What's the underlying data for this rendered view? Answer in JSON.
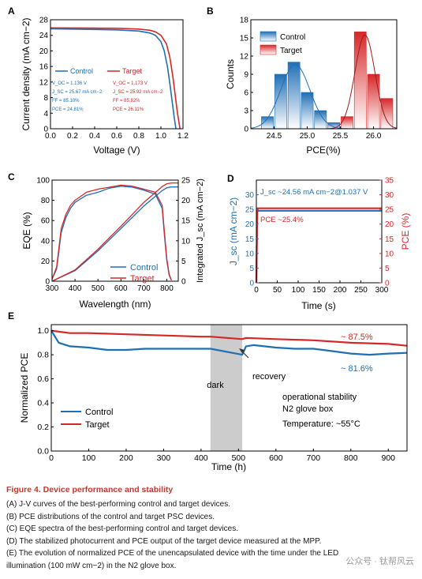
{
  "figure_title": "Figure 4.  Device performance and stability",
  "caption_lines": [
    "(A) J-V curves of the best-performing control and target devices.",
    "(B) PCE distributions of the control and target PSC devices.",
    "(C) EQE spectra of the best-performing control and target devices.",
    "(D) The stabilized photocurrent and PCE output of the target device measured at the MPP.",
    "(E) The evolution of normalized PCE of the unencapsulated device with the time under the LED",
    "illumination (100 mW cm−2) in the N2 glove box."
  ],
  "watermark": "公众号 · 钛帮风云",
  "colors": {
    "control": "#1f6fb5",
    "target": "#d62728",
    "dark_band": "#cccccc",
    "caption_title": "#c0392b"
  },
  "chart_data": [
    {
      "panel": "A",
      "type": "line",
      "xlabel": "Voltage (V)",
      "ylabel": "Current density (mA cm−2)",
      "xlim": [
        0.0,
        1.2
      ],
      "ylim": [
        0,
        28
      ],
      "xticks": [
        "0.0",
        "0.2",
        "0.4",
        "0.6",
        "0.8",
        "1.0",
        "1.2"
      ],
      "yticks": [
        "0",
        "4",
        "8",
        "12",
        "16",
        "20",
        "24",
        "28"
      ],
      "legend": [
        "Control",
        "Target"
      ],
      "series": [
        {
          "name": "Control",
          "x": [
            0.0,
            0.2,
            0.4,
            0.6,
            0.8,
            0.9,
            0.95,
            1.0,
            1.03,
            1.06,
            1.08,
            1.1,
            1.12,
            1.136
          ],
          "y": [
            25.67,
            25.6,
            25.5,
            25.4,
            25.1,
            24.6,
            24.0,
            22.4,
            20.0,
            15.8,
            11.8,
            7.4,
            3.0,
            0.0
          ]
        },
        {
          "name": "Target",
          "x": [
            0.0,
            0.2,
            0.4,
            0.6,
            0.8,
            0.9,
            0.95,
            1.0,
            1.05,
            1.08,
            1.11,
            1.13,
            1.15,
            1.173
          ],
          "y": [
            25.92,
            25.9,
            25.85,
            25.8,
            25.6,
            25.3,
            24.9,
            24.0,
            21.8,
            18.5,
            13.0,
            8.5,
            4.0,
            0.0
          ]
        }
      ],
      "annotations": {
        "control": [
          "V_OC = 1.136 V",
          "J_SC = 25.67 mA cm−2",
          "FF = 85.10%",
          "PCE = 24.81%"
        ],
        "target": [
          "V_OC = 1.173 V",
          "J_SC = 25.92 mA cm−2",
          "FF = 85.82%",
          "PCE = 26.11%"
        ]
      }
    },
    {
      "panel": "B",
      "type": "bar",
      "xlabel": "PCE(%)",
      "ylabel": "Counts",
      "xlim": [
        24.15,
        26.35
      ],
      "ylim": [
        0,
        18
      ],
      "xticks": [
        "24.5",
        "25.0",
        "25.5",
        "26.0"
      ],
      "yticks": [
        "0",
        "3",
        "6",
        "9",
        "12",
        "15",
        "18"
      ],
      "legend": [
        "Control",
        "Target"
      ],
      "bin_width": 0.18,
      "series": [
        {
          "name": "Control",
          "x": [
            24.4,
            24.6,
            24.8,
            25.0,
            25.2,
            25.4,
            25.6
          ],
          "values": [
            2,
            9,
            11,
            6,
            3,
            1,
            0
          ]
        },
        {
          "name": "Target",
          "x": [
            25.6,
            25.8,
            26.0,
            26.2
          ],
          "values": [
            2,
            16,
            9,
            5
          ]
        }
      ],
      "fits": [
        {
          "name": "Control",
          "mean": 24.82,
          "sigma": 0.22,
          "peak": 10.6
        },
        {
          "name": "Target",
          "mean": 25.87,
          "sigma": 0.15,
          "peak": 15.5
        }
      ]
    },
    {
      "panel": "C",
      "type": "line",
      "xlabel": "Wavelength (nm)",
      "ylabel": "EQE (%)",
      "y2label": "Integrated J_sc (mA cm−2)",
      "xlim": [
        300,
        850
      ],
      "ylim": [
        0,
        100
      ],
      "y2lim": [
        0,
        25
      ],
      "xticks": [
        "300",
        "400",
        "500",
        "600",
        "700",
        "800"
      ],
      "yticks": [
        "0",
        "20",
        "40",
        "60",
        "80",
        "100"
      ],
      "y2ticks": [
        "0",
        "5",
        "10",
        "15",
        "20",
        "25"
      ],
      "legend": [
        "Control",
        "Target"
      ],
      "series": [
        {
          "name": "Control EQE",
          "x": [
            300,
            320,
            340,
            360,
            380,
            400,
            450,
            500,
            550,
            600,
            650,
            700,
            750,
            780,
            790,
            800,
            810,
            820
          ],
          "y": [
            2,
            12,
            48,
            63,
            72,
            78,
            85,
            88,
            92,
            94,
            93,
            90,
            86,
            72,
            45,
            20,
            6,
            1
          ]
        },
        {
          "name": "Target EQE",
          "x": [
            300,
            320,
            340,
            360,
            380,
            400,
            450,
            500,
            550,
            600,
            650,
            700,
            750,
            780,
            790,
            800,
            810,
            820
          ],
          "y": [
            2,
            14,
            52,
            66,
            75,
            80,
            88,
            91,
            93,
            95,
            94,
            91,
            88,
            75,
            48,
            22,
            7,
            1
          ]
        },
        {
          "name": "Control J_sc",
          "x": [
            300,
            400,
            500,
            600,
            700,
            780,
            800,
            820,
            850
          ],
          "y": [
            0,
            2.6,
            7.5,
            13.0,
            18.6,
            22.4,
            23.1,
            23.3,
            23.3
          ]
        },
        {
          "name": "Target J_sc",
          "x": [
            300,
            400,
            500,
            600,
            700,
            780,
            800,
            820,
            850
          ],
          "y": [
            0,
            2.8,
            7.9,
            13.6,
            19.5,
            23.4,
            24.1,
            24.3,
            24.3
          ]
        }
      ]
    },
    {
      "panel": "D",
      "type": "line",
      "xlabel": "Time (s)",
      "ylabel": "J_sc (mA cm−2)",
      "y2label": "PCE (%)",
      "xlim": [
        0,
        300
      ],
      "ylim": [
        0,
        35
      ],
      "y2lim": [
        0,
        35
      ],
      "xticks": [
        "0",
        "50",
        "100",
        "150",
        "200",
        "250",
        "300"
      ],
      "yticks": [
        "0",
        "5",
        "10",
        "15",
        "20",
        "25",
        "30"
      ],
      "y2ticks": [
        "0",
        "5",
        "10",
        "15",
        "20",
        "25",
        "30",
        "35"
      ],
      "series": [
        {
          "name": "J_sc",
          "x": [
            0,
            2,
            300
          ],
          "y": [
            0,
            24.56,
            24.56
          ]
        },
        {
          "name": "PCE",
          "x": [
            0,
            2,
            300
          ],
          "y": [
            0,
            25.4,
            25.4
          ]
        }
      ],
      "annotations": [
        "J_sc ~24.56 mA cm−2@1.037 V",
        "PCE ~25.4%"
      ]
    },
    {
      "panel": "E",
      "type": "line",
      "xlabel": "Time (h)",
      "ylabel": "Normalized PCE",
      "xlim": [
        0,
        950
      ],
      "ylim": [
        0.0,
        1.05
      ],
      "xticks": [
        "0",
        "100",
        "200",
        "300",
        "400",
        "500",
        "600",
        "700",
        "800",
        "900"
      ],
      "yticks": [
        "0.0",
        "0.2",
        "0.4",
        "0.6",
        "0.8",
        "1.0"
      ],
      "legend": [
        "Control",
        "Target"
      ],
      "dark_interval": [
        425,
        510
      ],
      "series": [
        {
          "name": "Control",
          "x": [
            0,
            20,
            50,
            100,
            150,
            200,
            250,
            300,
            350,
            400,
            425,
            510,
            520,
            540,
            600,
            650,
            700,
            750,
            800,
            850,
            900,
            950
          ],
          "y": [
            1.0,
            0.9,
            0.87,
            0.86,
            0.84,
            0.84,
            0.85,
            0.85,
            0.85,
            0.85,
            0.85,
            0.8,
            0.87,
            0.88,
            0.86,
            0.85,
            0.85,
            0.83,
            0.81,
            0.8,
            0.81,
            0.816
          ]
        },
        {
          "name": "Target",
          "x": [
            0,
            50,
            100,
            200,
            300,
            400,
            425,
            510,
            520,
            600,
            700,
            800,
            900,
            950
          ],
          "y": [
            1.0,
            0.98,
            0.98,
            0.97,
            0.96,
            0.95,
            0.95,
            0.93,
            0.94,
            0.93,
            0.92,
            0.9,
            0.89,
            0.875
          ]
        }
      ],
      "annotations": [
        "dark",
        "recovery",
        "~ 87.5%",
        "~ 81.6%",
        "operational stability",
        "N2 glove box",
        "Temperature: ~55°C"
      ]
    }
  ]
}
